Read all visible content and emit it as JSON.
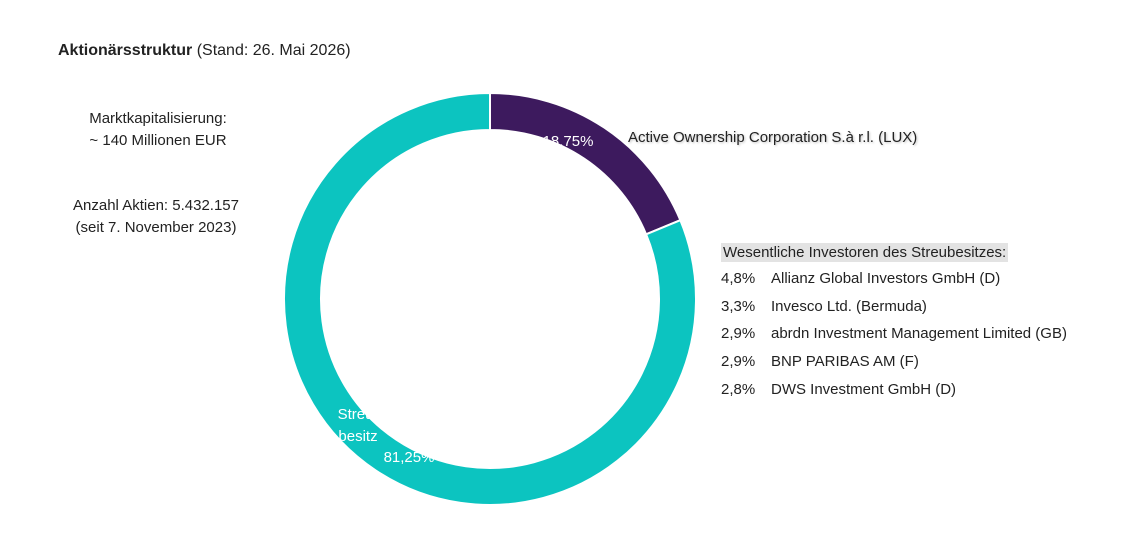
{
  "header": {
    "title": "Aktionärsstruktur",
    "subtitle": "(Stand: 26. Mai 2026)"
  },
  "info": {
    "market_cap_label": "Marktkapitalisierung:",
    "market_cap_value": "~ 140 Millionen EUR",
    "shares_label": "Anzahl Aktien:  5.432.157",
    "shares_since": "(seit 7. November 2023)"
  },
  "chart_data": {
    "type": "pie",
    "variant": "donut",
    "slices": [
      {
        "label": "Active Ownership Corporation S.à r.l. (LUX)",
        "value": 18.75,
        "display": "18,75%",
        "color": "#3d1a5e"
      },
      {
        "label": "Streu-\nbesitz",
        "value": 81.25,
        "display": "81,25%",
        "color": "#0cc4c0"
      }
    ]
  },
  "investors": {
    "title": "Wesentliche Investoren des Streubesitzes:",
    "items": [
      {
        "pct": "4,8%",
        "name": "Allianz Global Investors GmbH (D)"
      },
      {
        "pct": "3,3%",
        "name": "Invesco Ltd. (Bermuda)"
      },
      {
        "pct": "2,9%",
        "name": "abrdn Investment Management Limited (GB)"
      },
      {
        "pct": "2,9%",
        "name": "BNP PARIBAS AM (F)"
      },
      {
        "pct": "2,8%",
        "name": "DWS Investment GmbH (D)"
      }
    ]
  }
}
